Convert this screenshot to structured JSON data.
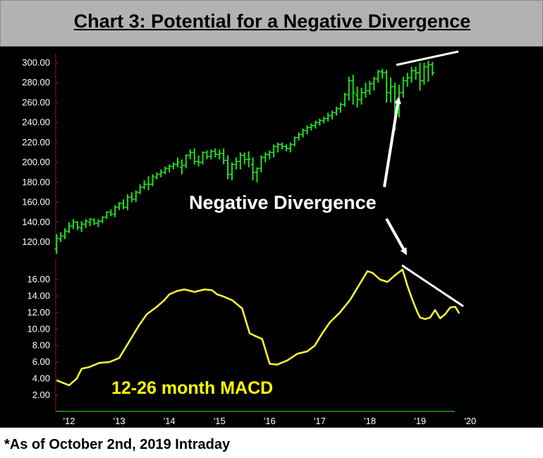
{
  "title": "Chart 3: Potential for a Negative Divergence",
  "footnote": "*As of October 2nd, 2019 Intraday",
  "colors": {
    "price": "#22dd22",
    "macd": "#ffff33",
    "annotation": "#ffffff",
    "background": "#000000",
    "axis": "#8b1a1a"
  },
  "chart_data": [
    {
      "type": "bar",
      "subtype": "ohlc-monthly",
      "name": "price",
      "yticks": [
        "120.00",
        "140.00",
        "160.00",
        "180.00",
        "200.00",
        "220.00",
        "240.00",
        "260.00",
        "280.00",
        "300.00"
      ],
      "ylim": [
        106,
        304
      ],
      "x_start": 2011.75,
      "step": 0.0833,
      "ohlc": [
        [
          113,
          128,
          108,
          124
        ],
        [
          123,
          130,
          120,
          126
        ],
        [
          126,
          134,
          123,
          131
        ],
        [
          131,
          140,
          129,
          136
        ],
        [
          136,
          143,
          133,
          140
        ],
        [
          140,
          141,
          132,
          135
        ],
        [
          134,
          141,
          130,
          138
        ],
        [
          138,
          143,
          134,
          141
        ],
        [
          140,
          144,
          136,
          143
        ],
        [
          142,
          144,
          137,
          139
        ],
        [
          139,
          143,
          135,
          141
        ],
        [
          141,
          146,
          139,
          145
        ],
        [
          145,
          151,
          143,
          150
        ],
        [
          150,
          153,
          146,
          148
        ],
        [
          148,
          157,
          145,
          155
        ],
        [
          155,
          160,
          152,
          159
        ],
        [
          159,
          163,
          153,
          155
        ],
        [
          155,
          168,
          152,
          165
        ],
        [
          165,
          170,
          160,
          163
        ],
        [
          163,
          172,
          160,
          170
        ],
        [
          170,
          178,
          168,
          175
        ],
        [
          175,
          182,
          173,
          178
        ],
        [
          178,
          186,
          172,
          178
        ],
        [
          178,
          188,
          176,
          186
        ],
        [
          185,
          190,
          183,
          188
        ],
        [
          188,
          193,
          185,
          190
        ],
        [
          190,
          196,
          188,
          194
        ],
        [
          194,
          198,
          190,
          196
        ],
        [
          196,
          200,
          193,
          198
        ],
        [
          198,
          205,
          195,
          200
        ],
        [
          195,
          203,
          188,
          197
        ],
        [
          197,
          208,
          194,
          207
        ],
        [
          207,
          213,
          203,
          210
        ],
        [
          210,
          214,
          198,
          201
        ],
        [
          201,
          207,
          196,
          200
        ],
        [
          200,
          211,
          198,
          210
        ],
        [
          210,
          212,
          203,
          206
        ],
        [
          206,
          213,
          203,
          211
        ],
        [
          211,
          214,
          205,
          208
        ],
        [
          208,
          213,
          203,
          209
        ],
        [
          209,
          214,
          198,
          202
        ],
        [
          202,
          207,
          183,
          188
        ],
        [
          188,
          200,
          182,
          198
        ],
        [
          198,
          205,
          193,
          201
        ],
        [
          201,
          210,
          193,
          207
        ],
        [
          207,
          210,
          198,
          203
        ],
        [
          203,
          211,
          195,
          203
        ],
        [
          198,
          205,
          182,
          190
        ],
        [
          190,
          195,
          180,
          194
        ],
        [
          194,
          207,
          190,
          205
        ],
        [
          205,
          210,
          200,
          208
        ],
        [
          208,
          212,
          203,
          210
        ],
        [
          210,
          218,
          205,
          216
        ],
        [
          216,
          220,
          210,
          218
        ],
        [
          218,
          220,
          213,
          216
        ],
        [
          216,
          218,
          211,
          214
        ],
        [
          214,
          220,
          210,
          218
        ],
        [
          218,
          226,
          216,
          225
        ],
        [
          225,
          230,
          222,
          228
        ],
        [
          228,
          234,
          225,
          232
        ],
        [
          232,
          237,
          228,
          235
        ],
        [
          235,
          239,
          232,
          237
        ],
        [
          237,
          242,
          234,
          240
        ],
        [
          240,
          244,
          237,
          242
        ],
        [
          242,
          246,
          239,
          244
        ],
        [
          244,
          250,
          241,
          247
        ],
        [
          247,
          252,
          243,
          250
        ],
        [
          250,
          256,
          247,
          254
        ],
        [
          254,
          260,
          250,
          258
        ],
        [
          258,
          270,
          256,
          268
        ],
        [
          268,
          286,
          262,
          282
        ],
        [
          282,
          288,
          258,
          270
        ],
        [
          268,
          276,
          255,
          263
        ],
        [
          263,
          275,
          258,
          270
        ],
        [
          270,
          280,
          265,
          272
        ],
        [
          272,
          282,
          268,
          279
        ],
        [
          279,
          286,
          272,
          284
        ],
        [
          284,
          293,
          280,
          291
        ],
        [
          291,
          294,
          284,
          290
        ],
        [
          290,
          293,
          260,
          270
        ],
        [
          270,
          285,
          260,
          276
        ],
        [
          276,
          280,
          232,
          250
        ],
        [
          250,
          278,
          245,
          270
        ],
        [
          270,
          286,
          265,
          282
        ],
        [
          282,
          290,
          276,
          285
        ],
        [
          285,
          296,
          280,
          292
        ],
        [
          292,
          296,
          283,
          290
        ],
        [
          290,
          300,
          272,
          282
        ],
        [
          282,
          300,
          278,
          296
        ],
        [
          296,
          302,
          281,
          298
        ],
        [
          298,
          301,
          287,
          290
        ]
      ]
    },
    {
      "type": "line",
      "name": "12-26 month MACD",
      "label": "12-26 month MACD",
      "yticks": [
        "2.00",
        "4.00",
        "6.00",
        "8.00",
        "10.00",
        "12.00",
        "14.00",
        "16.00"
      ],
      "ylim": [
        0,
        18
      ],
      "x": [
        2011.75,
        2012.0,
        2012.15,
        2012.25,
        2012.4,
        2012.6,
        2012.8,
        2013.0,
        2013.2,
        2013.4,
        2013.55,
        2013.75,
        2013.9,
        2014.0,
        2014.15,
        2014.3,
        2014.5,
        2014.7,
        2014.85,
        2014.95,
        2015.05,
        2015.25,
        2015.45,
        2015.6,
        2015.7,
        2015.85,
        2016.0,
        2016.15,
        2016.35,
        2016.55,
        2016.75,
        2016.9,
        2017.05,
        2017.2,
        2017.4,
        2017.6,
        2017.8,
        2017.95,
        2018.05,
        2018.2,
        2018.35,
        2018.5,
        2018.65,
        2018.75,
        2018.85,
        2018.95,
        2019.0,
        2019.1,
        2019.2,
        2019.3,
        2019.4,
        2019.5,
        2019.6,
        2019.7,
        2019.78
      ],
      "y": [
        3.8,
        3.2,
        4.0,
        5.2,
        5.4,
        5.9,
        6.0,
        6.5,
        8.5,
        10.5,
        11.8,
        12.7,
        13.5,
        14.2,
        14.6,
        14.8,
        14.5,
        14.8,
        14.7,
        14.2,
        14.0,
        13.5,
        12.5,
        9.5,
        9.2,
        8.8,
        5.8,
        5.7,
        6.2,
        7.0,
        7.3,
        8.0,
        9.5,
        10.8,
        12.0,
        13.5,
        15.5,
        17.0,
        16.8,
        16.0,
        15.7,
        16.5,
        17.2,
        15.2,
        13.5,
        12.0,
        11.4,
        11.2,
        11.4,
        12.3,
        11.3,
        11.8,
        12.6,
        12.7,
        11.9
      ],
      "xticks": [
        "'12",
        "'13",
        "'14",
        "'15",
        "'16",
        "'17",
        "'18",
        "'19",
        "'20"
      ],
      "xtick_values": [
        2012,
        2013,
        2014,
        2015,
        2016,
        2017,
        2018,
        2019,
        2020
      ]
    }
  ],
  "annotations": {
    "divergence_label": "Negative Divergence"
  }
}
